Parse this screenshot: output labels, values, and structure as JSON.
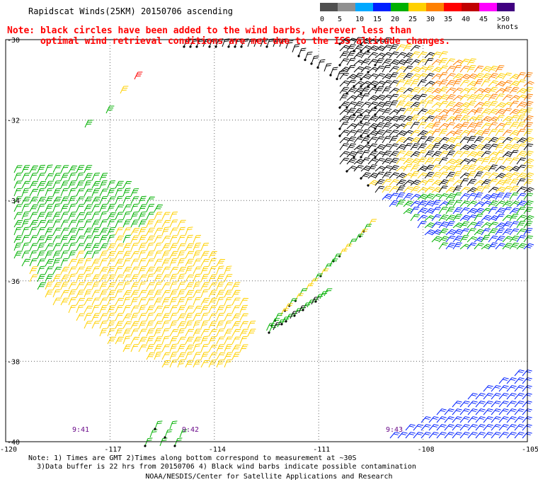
{
  "header": {
    "title": "Rapidscat Winds(25KM) 20150706 ascending",
    "note_line1": "Note: black circles have been added to the wind barbs, wherever less than",
    "note_line2": "      optimal wind retrieval conditions are met due to the ISS altitude changes."
  },
  "color_scale": {
    "labels": [
      "0",
      "5",
      "10",
      "15",
      "20",
      "25",
      "30",
      "35",
      "40",
      "45",
      ">50 knots"
    ],
    "colors": [
      "#505050",
      "#909090",
      "#00a8ff",
      "#0020ff",
      "#00b000",
      "#ffd000",
      "#ff8000",
      "#ff0000",
      "#c00000",
      "#ff00ff",
      "#400080"
    ]
  },
  "map": {
    "lon_ticks": [
      "-120",
      "-117",
      "-114",
      "-111",
      "-108",
      "-105"
    ],
    "lat_ticks": [
      "-30",
      "-32",
      "-34",
      "-36",
      "-38",
      "-40"
    ],
    "lon_values": [
      -120,
      -117,
      -114,
      -111,
      -108,
      -105
    ],
    "lat_values": [
      -30,
      -32,
      -34,
      -36,
      -38,
      -40
    ],
    "timestamps": [
      "9:41",
      "9:42",
      "9:43"
    ],
    "barb_colors": {
      "light": "#00b000",
      "moderate": "#ffd000",
      "strong": "#ff8000",
      "very_strong": "#ff0000",
      "weak": "#0020ff",
      "contaminated": "#000000"
    }
  },
  "footer": {
    "notes_line1": "Note: 1) Times are GMT 2)Times along bottom correspond to measurement at ~30S",
    "notes_line2": "  3)Data buffer is 22 hrs from 20150706 4) Black wind barbs indicate possible contamination",
    "credit": "NOAA/NESDIS/Center for Satellite Applications and Research"
  }
}
